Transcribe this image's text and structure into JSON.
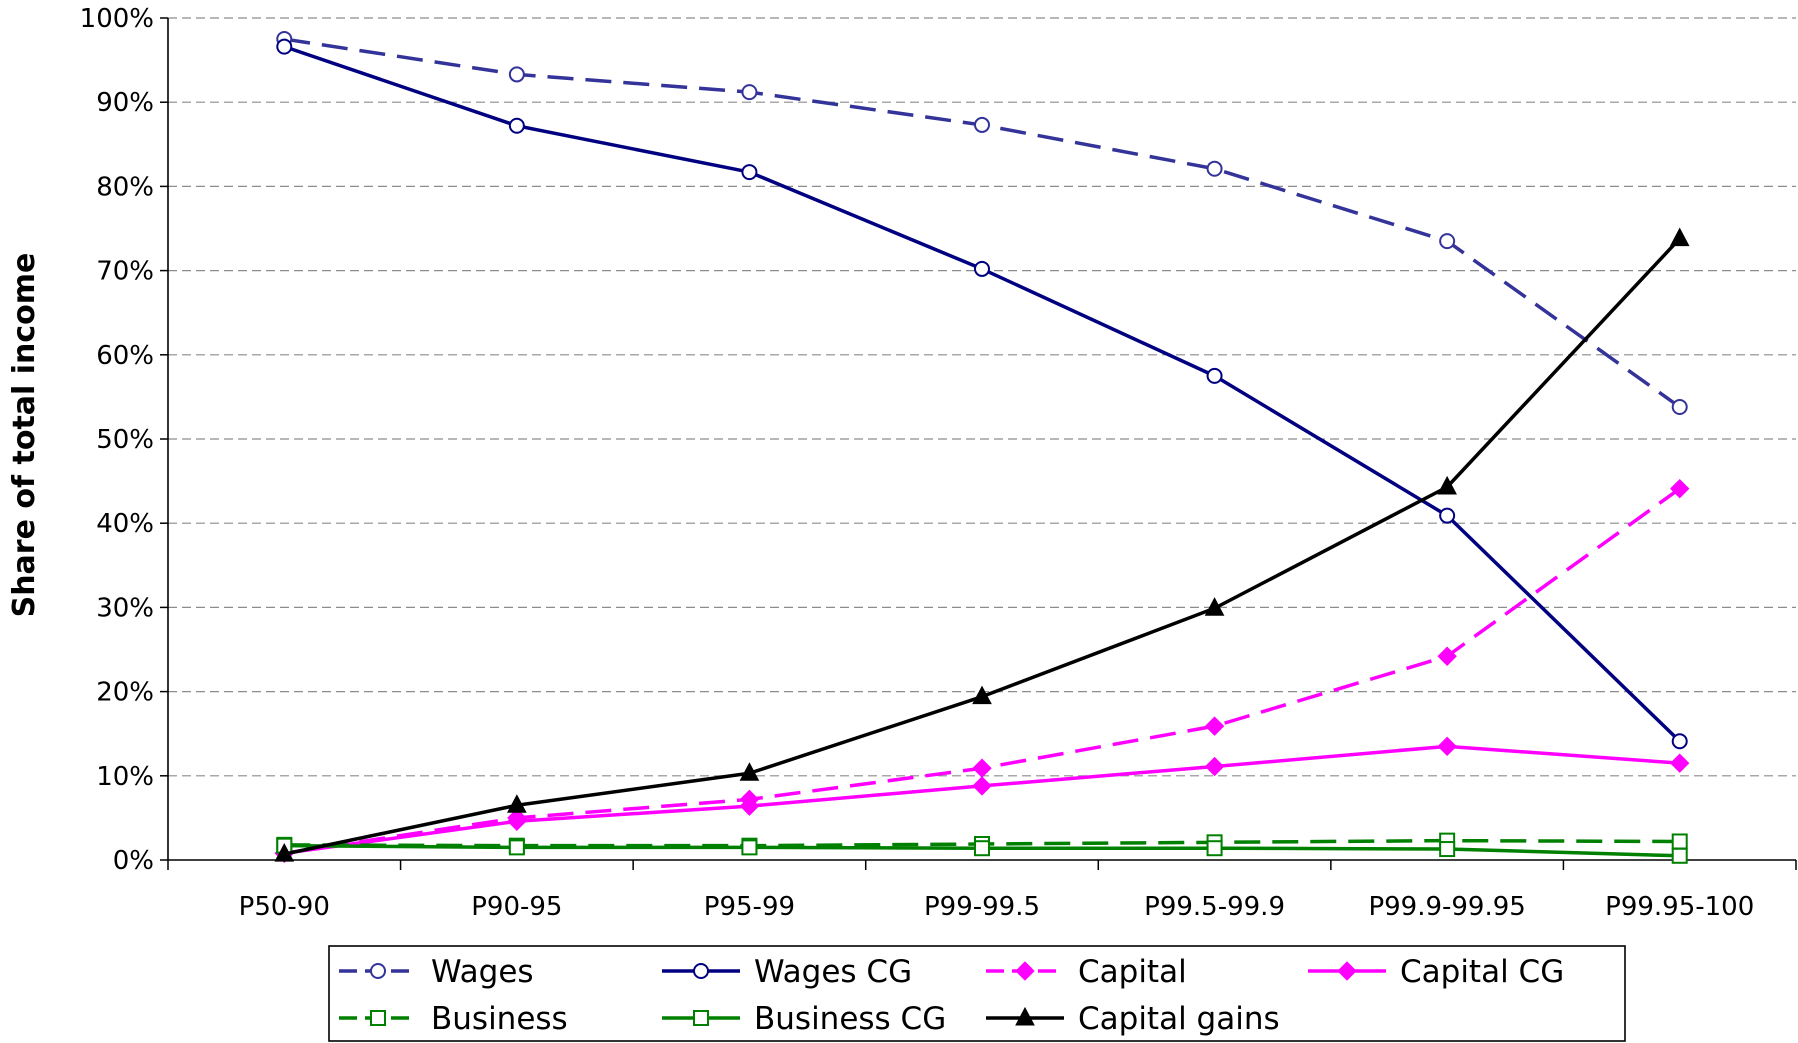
{
  "chart_data": {
    "type": "line",
    "title": "",
    "xlabel": "",
    "ylabel": "Share of total income",
    "ylim": [
      0,
      100
    ],
    "y_tick_labels": [
      "0%",
      "10%",
      "20%",
      "30%",
      "40%",
      "50%",
      "60%",
      "70%",
      "80%",
      "90%",
      "100%"
    ],
    "categories": [
      "P50-90",
      "P90-95",
      "P95-99",
      "P99-99.5",
      "P99.5-99.9",
      "P99.9-99.95",
      "P99.95-100"
    ],
    "grid": "horizontal dashed",
    "legend_placement": "bottom",
    "series": [
      {
        "name": "Wages",
        "values": [
          97.5,
          93.3,
          91.2,
          87.3,
          82.1,
          73.5,
          53.8
        ],
        "color": "#333399",
        "dash": "dashed",
        "marker": "open-circle"
      },
      {
        "name": "Wages CG",
        "values": [
          96.6,
          87.2,
          81.7,
          70.2,
          57.5,
          40.9,
          14.1
        ],
        "color": "#000080",
        "dash": "solid",
        "marker": "open-circle"
      },
      {
        "name": "Capital",
        "values": [
          0.8,
          5.0,
          7.2,
          10.9,
          15.9,
          24.2,
          44.1
        ],
        "color": "#ff00ff",
        "dash": "dashed",
        "marker": "diamond"
      },
      {
        "name": "Capital CG",
        "values": [
          0.8,
          4.6,
          6.4,
          8.8,
          11.1,
          13.5,
          11.5
        ],
        "color": "#ff00ff",
        "dash": "solid",
        "marker": "diamond"
      },
      {
        "name": "Business",
        "values": [
          1.8,
          1.7,
          1.7,
          1.9,
          2.1,
          2.3,
          2.2
        ],
        "color": "#008000",
        "dash": "dashed",
        "marker": "open-square"
      },
      {
        "name": "Business CG",
        "values": [
          1.7,
          1.5,
          1.5,
          1.4,
          1.4,
          1.3,
          0.5
        ],
        "color": "#008000",
        "dash": "solid",
        "marker": "open-square"
      },
      {
        "name": "Capital gains",
        "values": [
          0.7,
          6.5,
          10.3,
          19.4,
          29.9,
          44.3,
          73.8
        ],
        "color": "#000000",
        "dash": "solid",
        "marker": "triangle"
      }
    ]
  }
}
